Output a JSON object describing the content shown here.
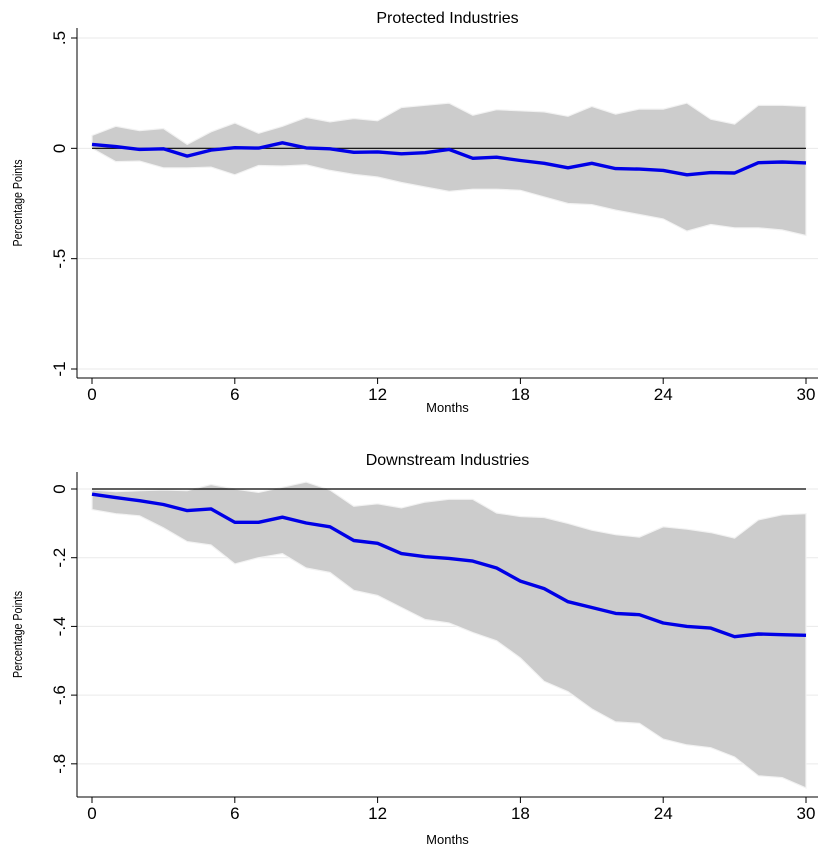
{
  "chart_data": [
    {
      "type": "area",
      "title": "Protected Industries",
      "xlabel": "Months",
      "ylabel": "Percentage Points",
      "xlim": [
        0,
        30
      ],
      "ylim": [
        -1,
        0.5
      ],
      "xticks": [
        0,
        6,
        12,
        18,
        24,
        30
      ],
      "yticks": [
        -1,
        -0.5,
        0,
        0.5
      ],
      "ytick_labels": [
        "-1",
        "-.5",
        "0",
        ".5"
      ],
      "grid": true,
      "reference_line": 0,
      "colors": {
        "line": "#0000e6",
        "band": "#cccccc",
        "band_edge": "#f2f2f2",
        "zero_line": "#000000"
      },
      "series": [
        {
          "x": [
            0,
            1,
            2,
            3,
            4,
            5,
            6,
            7,
            8,
            9,
            10,
            11,
            12,
            13,
            14,
            15,
            16,
            17,
            18,
            19,
            20,
            21,
            22,
            23,
            24,
            25,
            26,
            27,
            28,
            29,
            30
          ],
          "values": [
            0.018,
            0.008,
            -0.005,
            -0.002,
            -0.035,
            -0.008,
            0.003,
            0.001,
            0.025,
            0.002,
            -0.002,
            -0.018,
            -0.016,
            -0.025,
            -0.02,
            -0.005,
            -0.045,
            -0.04,
            -0.055,
            -0.068,
            -0.088,
            -0.068,
            -0.092,
            -0.094,
            -0.1,
            -0.12,
            -0.11,
            -0.112,
            -0.065,
            -0.062,
            -0.066
          ],
          "lower": [
            0,
            -0.06,
            -0.058,
            -0.088,
            -0.088,
            -0.085,
            -0.12,
            -0.078,
            -0.08,
            -0.075,
            -0.1,
            -0.118,
            -0.13,
            -0.155,
            -0.175,
            -0.195,
            -0.185,
            -0.185,
            -0.19,
            -0.22,
            -0.25,
            -0.255,
            -0.28,
            -0.3,
            -0.32,
            -0.375,
            -0.345,
            -0.36,
            -0.36,
            -0.37,
            -0.395
          ],
          "upper": [
            0.058,
            0.1,
            0.08,
            0.09,
            0.018,
            0.075,
            0.115,
            0.068,
            0.1,
            0.14,
            0.12,
            0.135,
            0.125,
            0.185,
            0.195,
            0.205,
            0.15,
            0.175,
            0.17,
            0.165,
            0.145,
            0.19,
            0.155,
            0.178,
            0.178,
            0.205,
            0.132,
            0.11,
            0.195,
            0.195,
            0.19
          ]
        }
      ]
    },
    {
      "type": "area",
      "title": "Downstream Industries",
      "xlabel": "Months",
      "ylabel": "Percentage Points",
      "xlim": [
        0,
        30
      ],
      "ylim": [
        -0.85,
        0
      ],
      "xticks": [
        0,
        6,
        12,
        18,
        24,
        30
      ],
      "yticks": [
        -0.8,
        -0.6,
        -0.4,
        -0.2,
        0
      ],
      "ytick_labels": [
        "-.8",
        "-.6",
        "-.4",
        "-.2",
        "0"
      ],
      "grid": true,
      "reference_line": 0,
      "colors": {
        "line": "#0000e6",
        "band": "#cccccc",
        "band_edge": "#f2f2f2",
        "zero_line": "#000000"
      },
      "series": [
        {
          "x": [
            0,
            1,
            2,
            3,
            4,
            5,
            6,
            7,
            8,
            9,
            10,
            11,
            12,
            13,
            14,
            15,
            16,
            17,
            18,
            19,
            20,
            21,
            22,
            23,
            24,
            25,
            26,
            27,
            28,
            29,
            30
          ],
          "values": [
            -0.015,
            -0.025,
            -0.034,
            -0.045,
            -0.063,
            -0.058,
            -0.097,
            -0.097,
            -0.082,
            -0.099,
            -0.11,
            -0.15,
            -0.158,
            -0.188,
            -0.197,
            -0.202,
            -0.21,
            -0.23,
            -0.268,
            -0.29,
            -0.328,
            -0.345,
            -0.362,
            -0.366,
            -0.39,
            -0.4,
            -0.405,
            -0.43,
            -0.422,
            -0.424,
            -0.426
          ],
          "lower": [
            -0.06,
            -0.072,
            -0.078,
            -0.113,
            -0.153,
            -0.163,
            -0.218,
            -0.2,
            -0.188,
            -0.23,
            -0.243,
            -0.295,
            -0.31,
            -0.345,
            -0.38,
            -0.39,
            -0.418,
            -0.442,
            -0.492,
            -0.56,
            -0.59,
            -0.64,
            -0.678,
            -0.682,
            -0.728,
            -0.745,
            -0.753,
            -0.78,
            -0.835,
            -0.84,
            -0.87
          ],
          "upper": [
            -0.003,
            -0.008,
            -0.005,
            -0.003,
            -0.005,
            0.013,
            0,
            -0.01,
            0.005,
            0.02,
            -0.003,
            -0.05,
            -0.043,
            -0.055,
            -0.038,
            -0.03,
            -0.03,
            -0.07,
            -0.08,
            -0.083,
            -0.1,
            -0.12,
            -0.133,
            -0.14,
            -0.11,
            -0.117,
            -0.127,
            -0.143,
            -0.09,
            -0.075,
            -0.072
          ]
        }
      ]
    }
  ]
}
